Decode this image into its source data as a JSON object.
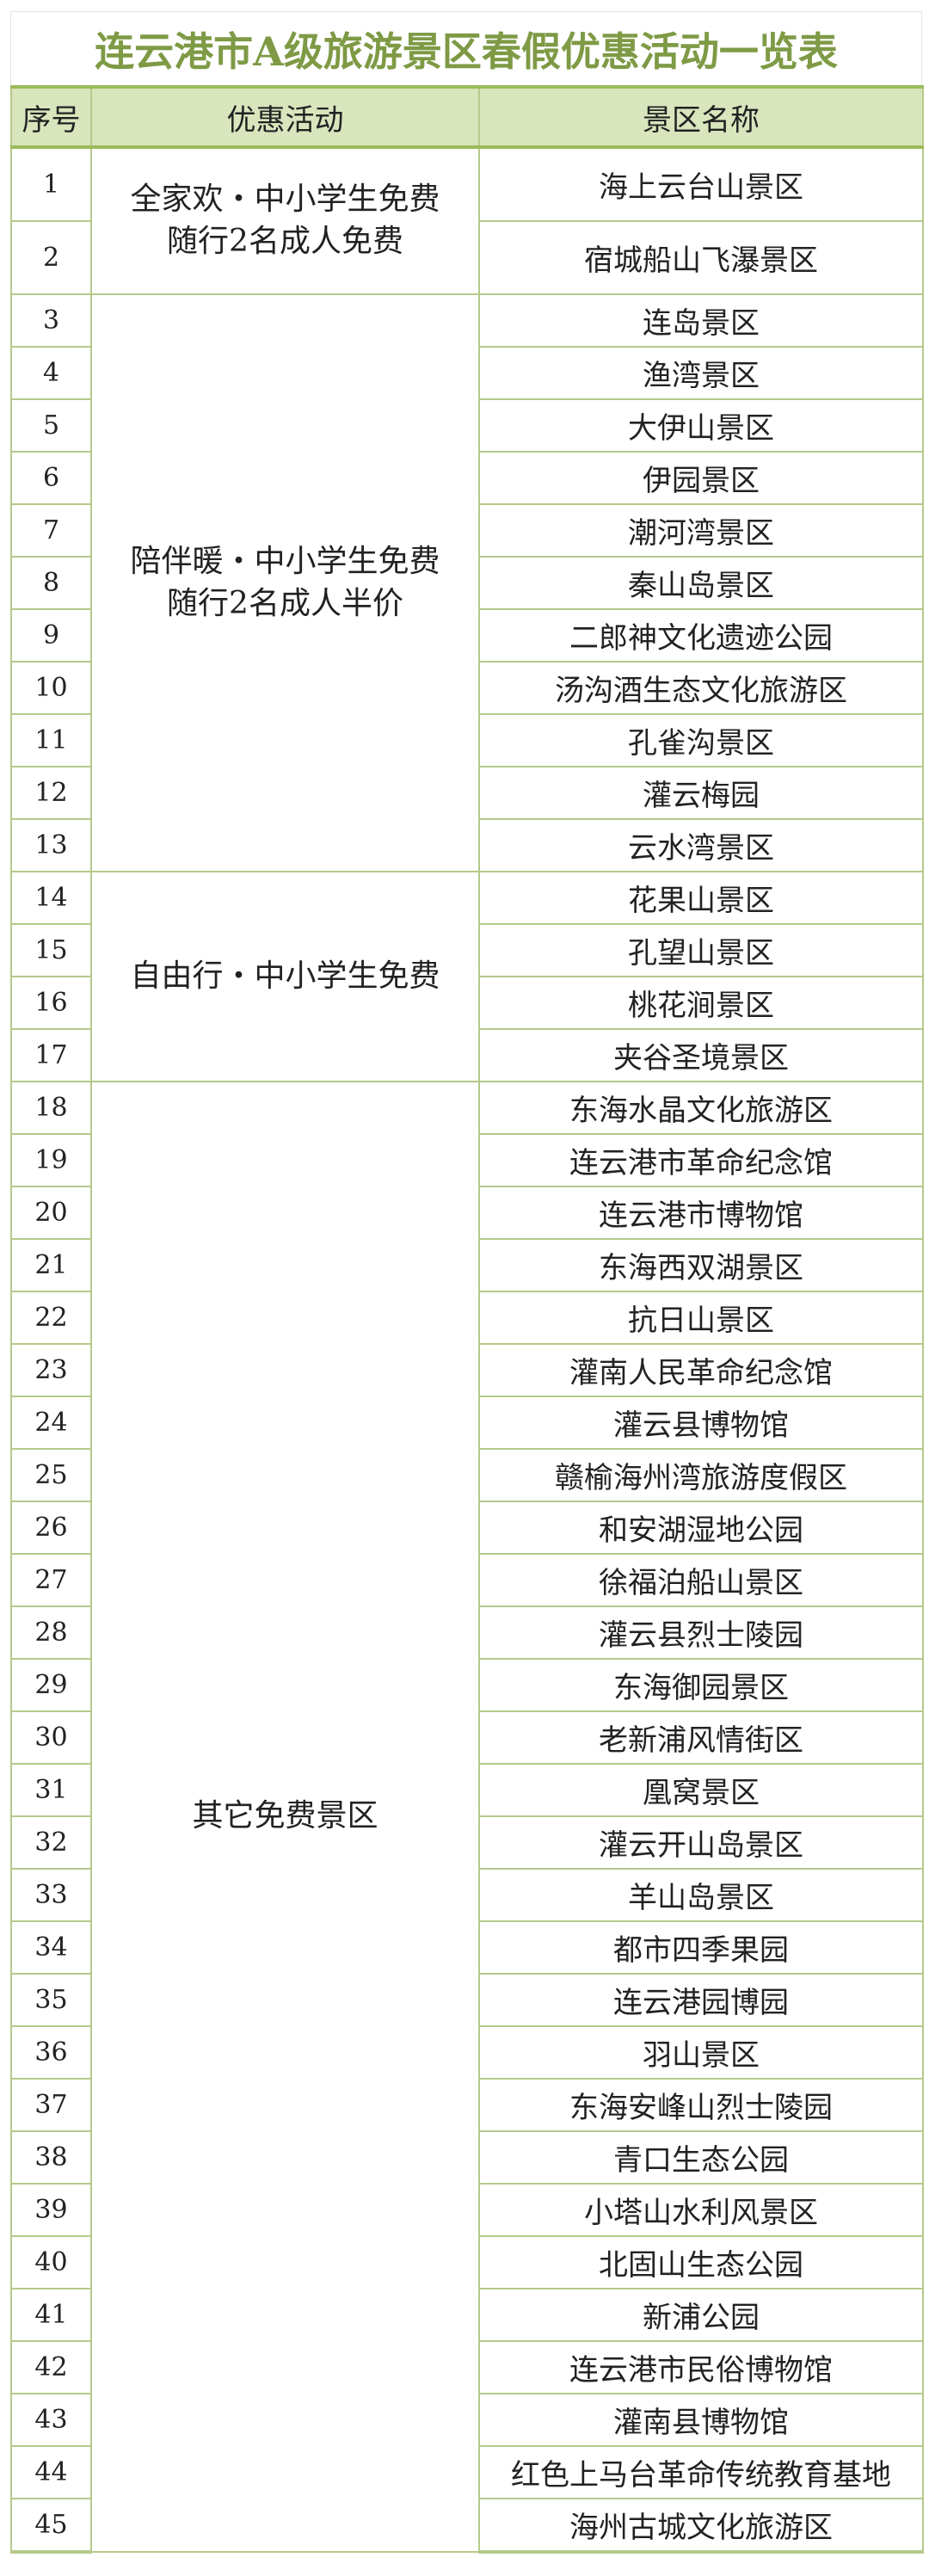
{
  "title": "连云港市A级旅游景区春假优惠活动一览表",
  "colors": {
    "title": "#7e9a45",
    "header_bg": "#d9e5bd",
    "border": "#9bbb59"
  },
  "headers": {
    "index": "序号",
    "activity": "优惠活动",
    "scenic": "景区名称"
  },
  "groups": [
    {
      "activity": [
        "全家欢・中小学生免费",
        "随行2名成人免费"
      ],
      "rows": [
        {
          "n": "1",
          "name": "海上云台山景区"
        },
        {
          "n": "2",
          "name": "宿城船山飞瀑景区"
        }
      ]
    },
    {
      "activity": [
        "陪伴暖・中小学生免费",
        "随行2名成人半价"
      ],
      "rows": [
        {
          "n": "3",
          "name": "连岛景区"
        },
        {
          "n": "4",
          "name": "渔湾景区"
        },
        {
          "n": "5",
          "name": "大伊山景区"
        },
        {
          "n": "6",
          "name": "伊园景区"
        },
        {
          "n": "7",
          "name": "潮河湾景区"
        },
        {
          "n": "8",
          "name": "秦山岛景区"
        },
        {
          "n": "9",
          "name": "二郎神文化遗迹公园"
        },
        {
          "n": "10",
          "name": "汤沟酒生态文化旅游区"
        },
        {
          "n": "11",
          "name": "孔雀沟景区"
        },
        {
          "n": "12",
          "name": "灌云梅园"
        },
        {
          "n": "13",
          "name": "云水湾景区"
        }
      ]
    },
    {
      "activity": [
        "自由行・中小学生免费"
      ],
      "rows": [
        {
          "n": "14",
          "name": "花果山景区"
        },
        {
          "n": "15",
          "name": "孔望山景区"
        },
        {
          "n": "16",
          "name": "桃花涧景区"
        },
        {
          "n": "17",
          "name": "夹谷圣境景区"
        }
      ]
    },
    {
      "activity": [
        "其它免费景区"
      ],
      "rows": [
        {
          "n": "18",
          "name": "东海水晶文化旅游区"
        },
        {
          "n": "19",
          "name": "连云港市革命纪念馆"
        },
        {
          "n": "20",
          "name": "连云港市博物馆"
        },
        {
          "n": "21",
          "name": "东海西双湖景区"
        },
        {
          "n": "22",
          "name": "抗日山景区"
        },
        {
          "n": "23",
          "name": "灌南人民革命纪念馆"
        },
        {
          "n": "24",
          "name": "灌云县博物馆"
        },
        {
          "n": "25",
          "name": "赣榆海州湾旅游度假区"
        },
        {
          "n": "26",
          "name": "和安湖湿地公园"
        },
        {
          "n": "27",
          "name": "徐福泊船山景区"
        },
        {
          "n": "28",
          "name": "灌云县烈士陵园"
        },
        {
          "n": "29",
          "name": "东海御园景区"
        },
        {
          "n": "30",
          "name": "老新浦风情街区"
        },
        {
          "n": "31",
          "name": "凰窝景区"
        },
        {
          "n": "32",
          "name": "灌云开山岛景区"
        },
        {
          "n": "33",
          "name": "羊山岛景区"
        },
        {
          "n": "34",
          "name": "都市四季果园"
        },
        {
          "n": "35",
          "name": "连云港园博园"
        },
        {
          "n": "36",
          "name": "羽山景区"
        },
        {
          "n": "37",
          "name": "东海安峰山烈士陵园"
        },
        {
          "n": "38",
          "name": "青口生态公园"
        },
        {
          "n": "39",
          "name": "小塔山水利风景区"
        },
        {
          "n": "40",
          "name": "北固山生态公园"
        },
        {
          "n": "41",
          "name": "新浦公园"
        },
        {
          "n": "42",
          "name": "连云港市民俗博物馆"
        },
        {
          "n": "43",
          "name": "灌南县博物馆"
        },
        {
          "n": "44",
          "name": "红色上马台革命传统教育基地"
        },
        {
          "n": "45",
          "name": "海州古城文化旅游区"
        }
      ]
    }
  ]
}
